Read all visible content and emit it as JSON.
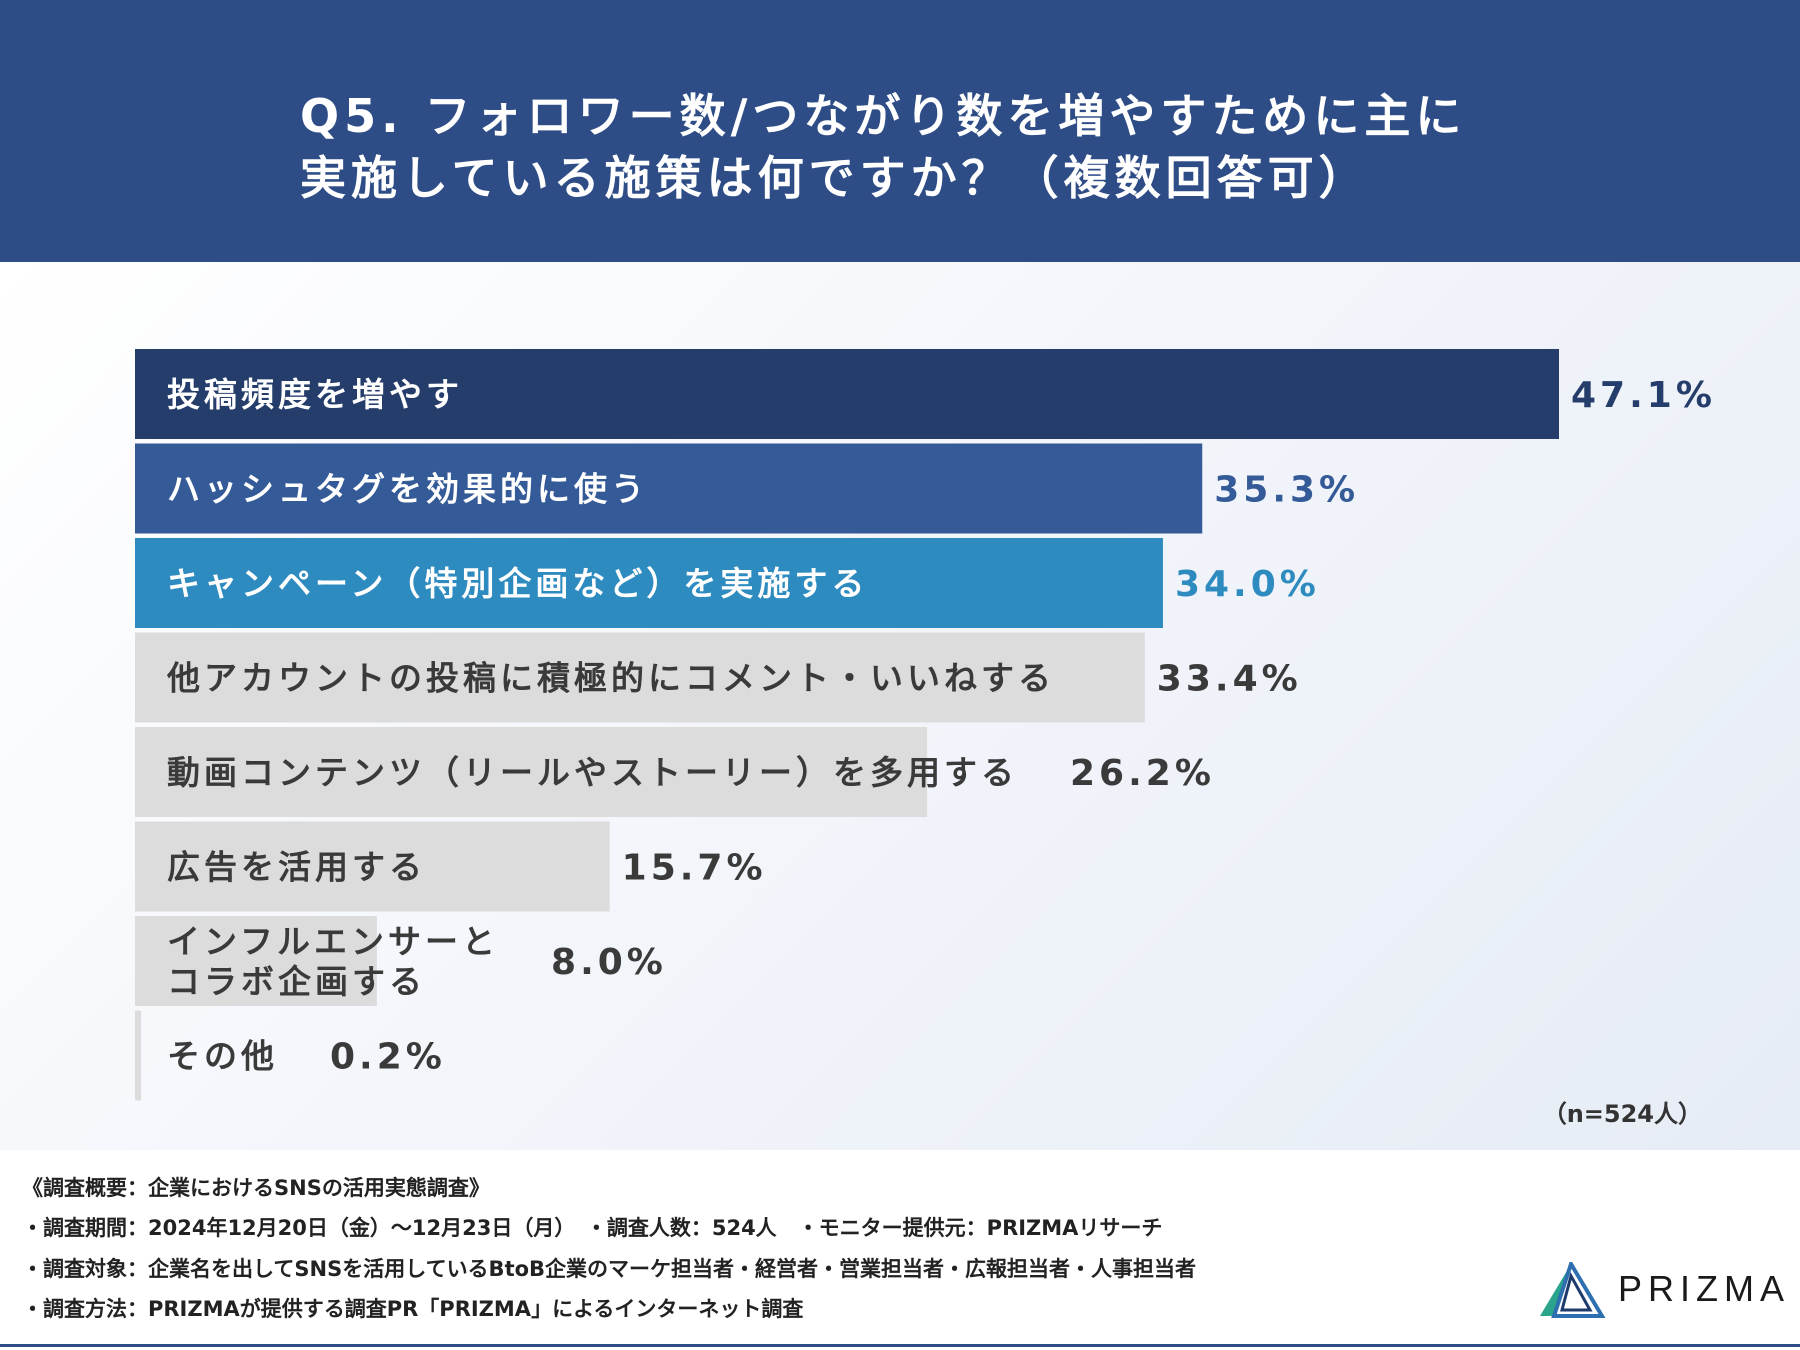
{
  "header": {
    "title_line1": "Q5. フォロワー数/つながり数を増やすために主に",
    "title_line2": "実施している施策は何ですか？（複数回答可）"
  },
  "chart_data": {
    "type": "bar",
    "orientation": "horizontal",
    "unit": "%",
    "categories": [
      "投稿頻度を増やす",
      "ハッシュタグを効果的に使う",
      "キャンペーン（特別企画など）を実施する",
      "他アカウントの投稿に積極的にコメント・いいねする",
      "動画コンテンツ（リールやストーリー）を多用する",
      "広告を活用する",
      "インフルエンサーとコラボ企画する",
      "その他"
    ],
    "category_lines": [
      [
        "投稿頻度を増やす"
      ],
      [
        "ハッシュタグを効果的に使う"
      ],
      [
        "キャンペーン（特別企画など）を実施する"
      ],
      [
        "他アカウントの投稿に積極的にコメント・いいねする"
      ],
      [
        "動画コンテンツ（リールやストーリー）を多用する"
      ],
      [
        "広告を活用する"
      ],
      [
        "インフルエンサーと",
        "コラボ企画する"
      ],
      [
        "その他"
      ]
    ],
    "values": [
      47.1,
      35.3,
      34.0,
      33.4,
      26.2,
      15.7,
      8.0,
      0.2
    ],
    "value_labels": [
      "47.1%",
      "35.3%",
      "34.0%",
      "33.4%",
      "26.2%",
      "15.7%",
      "8.0%",
      "0.2%"
    ],
    "colors": [
      "#253d6b",
      "#355a98",
      "#2e8bbf",
      "#dcdcdc",
      "#dcdcdc",
      "#dcdcdc",
      "#dcdcdc",
      "#dcdcdc"
    ],
    "label_colors": [
      "#ffffff",
      "#ffffff",
      "#ffffff",
      "#3a3a3a",
      "#3a3a3a",
      "#3a3a3a",
      "#3a3a3a",
      "#3a3a3a"
    ],
    "value_colors": [
      "#253d6b",
      "#355a98",
      "#2e8bbf",
      "#3a3a3a",
      "#3a3a3a",
      "#3a3a3a",
      "#3a3a3a",
      "#3a3a3a"
    ],
    "grid": false
  },
  "note": "（n=524人）",
  "footer": {
    "line0": "《調査概要：企業におけるSNSの活用実態調査》",
    "line1": "・調査期間：2024年12月20日（金）〜12月23日（月）　・調査人数：524人　・モニター提供元：PRIZMAリサーチ",
    "line2": "・調査対象：企業名を出してSNSを活用しているBtoB企業のマーケ担当者・経営者・営業担当者・広報担当者・人事担当者",
    "line3": "・調査方法：PRIZMAが提供する調査PR「PRIZMA」によるインターネット調査"
  },
  "logo": {
    "text": "PRIZMA",
    "icon": "prizma-triangle-icon",
    "colors": [
      "#2aa58c",
      "#2e6fb0",
      "#1f3b6e"
    ]
  }
}
